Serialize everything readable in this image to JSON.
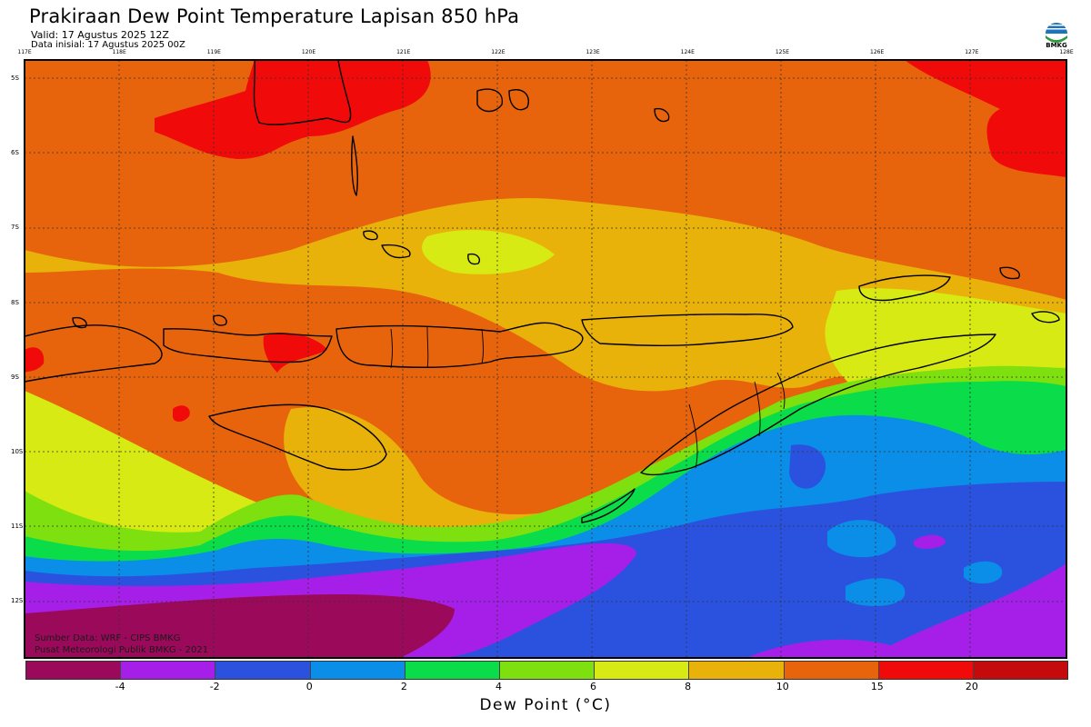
{
  "header": {
    "title": "Prakiraan Dew Point Temperature Lapisan 850 hPa",
    "valid": "Valid: 17 Agustus 2025 12Z",
    "initial": "Data inisial: 17 Agustus 2025 00Z"
  },
  "logo": {
    "text": "BMKG",
    "icon": "bmkg-logo-icon",
    "colors": [
      "#1e73be",
      "#2e9a3e"
    ]
  },
  "axes": {
    "lon_labels": [
      "117E",
      "118E",
      "119E",
      "120E",
      "121E",
      "122E",
      "123E",
      "124E",
      "125E",
      "126E",
      "127E",
      "128E"
    ],
    "lat_labels": [
      "5S",
      "6S",
      "7S",
      "8S",
      "9S",
      "10S",
      "11S",
      "12S"
    ]
  },
  "footer": {
    "source": "Sumber Data: WRF - CIPS BMKG",
    "org": "Pusat Meteorologi Publik BMKG - 2021"
  },
  "colorbar": {
    "label": "Dew Point (°C)",
    "ticks": [
      "-4",
      "-2",
      "0",
      "2",
      "4",
      "6",
      "8",
      "10",
      "15",
      "20"
    ],
    "colors": [
      "#9b0a5a",
      "#a61fe8",
      "#2a52de",
      "#0a8ee8",
      "#0adc4a",
      "#7ee00e",
      "#d8ea14",
      "#e8b20a",
      "#e8640c",
      "#f00a0a",
      "#c40a0a"
    ]
  },
  "map_colors": {
    "c_m6": "#9b0a5a",
    "c_m4": "#a61fe8",
    "c_m2": "#2a52de",
    "c_0": "#0a8ee8",
    "c_2": "#0adc4a",
    "c_4": "#7ee00e",
    "c_6": "#d8ea14",
    "c_8": "#e8b20a",
    "c_10": "#e8640c",
    "c_15": "#f00a0a"
  }
}
